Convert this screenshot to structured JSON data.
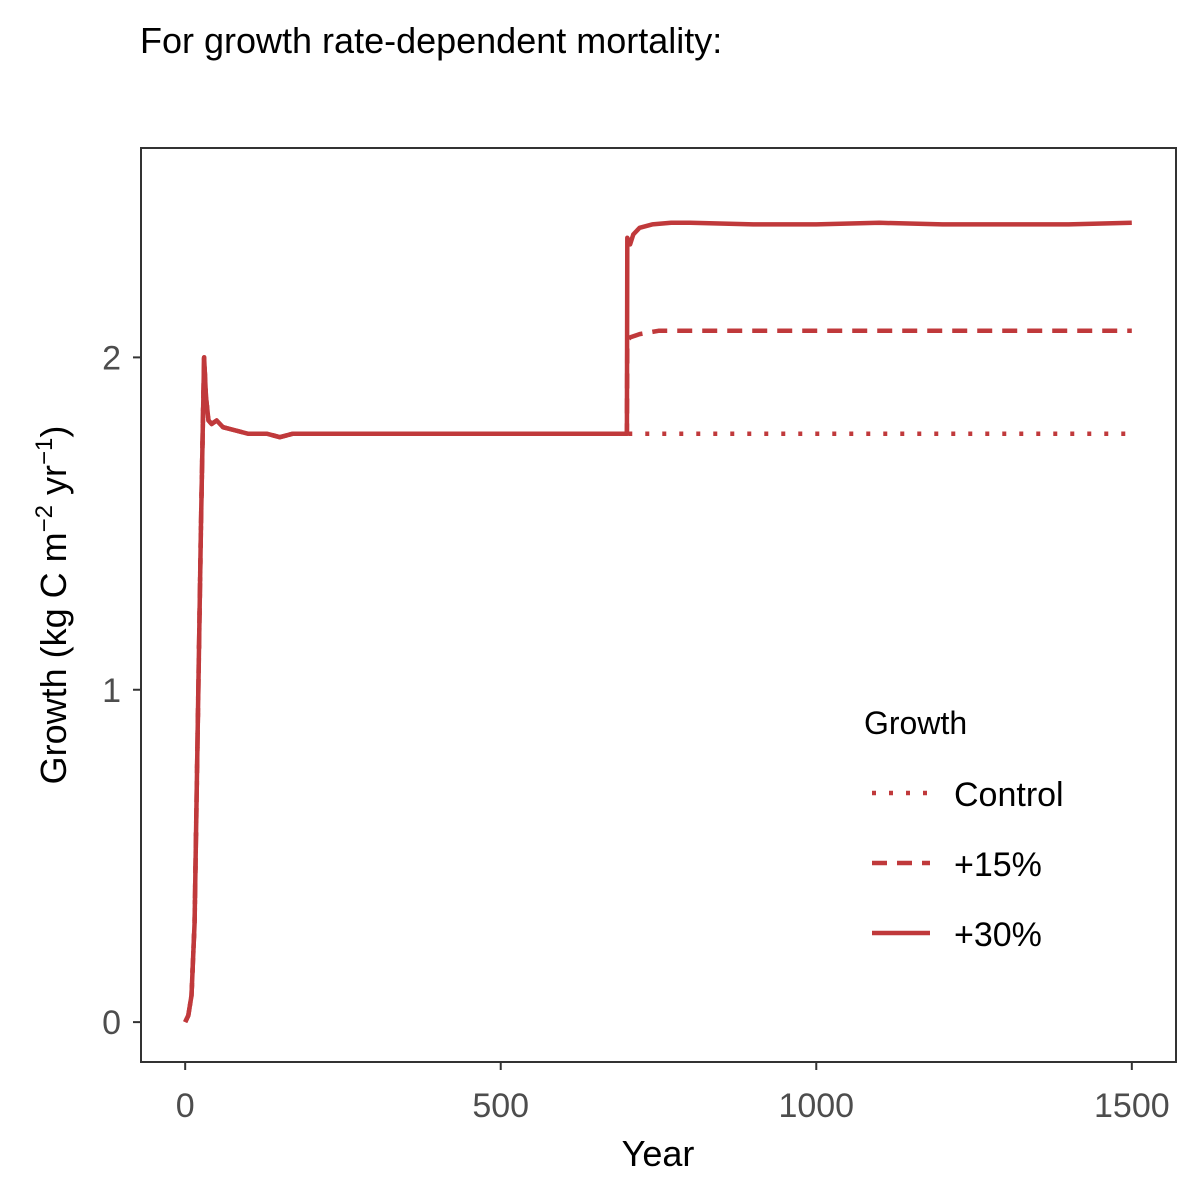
{
  "chart_data": {
    "type": "line",
    "title": "For growth rate-dependent mortality:",
    "xlabel": "Year",
    "ylabel_main": "Growth (kg C m",
    "ylabel_sup1": "−2",
    "ylabel_mid": " yr",
    "ylabel_sup2": "−1",
    "ylabel_end": ")",
    "xlim": [
      -70,
      1570
    ],
    "ylim": [
      -0.12,
      2.63
    ],
    "xticks": [
      {
        "value": 0,
        "label": "0"
      },
      {
        "value": 500,
        "label": "500"
      },
      {
        "value": 1000,
        "label": "1000"
      },
      {
        "value": 1500,
        "label": "1500"
      }
    ],
    "yticks": [
      {
        "value": 0,
        "label": "0"
      },
      {
        "value": 1,
        "label": "1"
      },
      {
        "value": 2,
        "label": "2"
      }
    ],
    "grid": false,
    "legend": {
      "title": "Growth",
      "position": "right"
    },
    "color": "#c0393b",
    "series": [
      {
        "name": "Control",
        "style": "dotted",
        "x": [
          0,
          5,
          10,
          15,
          20,
          25,
          30,
          33,
          37,
          42,
          50,
          60,
          80,
          100,
          130,
          150,
          170,
          200,
          300,
          400,
          500,
          600,
          700,
          800,
          900,
          1000,
          1100,
          1200,
          1300,
          1400,
          1500
        ],
        "y": [
          0.0,
          0.02,
          0.08,
          0.3,
          0.9,
          1.5,
          2.0,
          1.88,
          1.81,
          1.8,
          1.81,
          1.79,
          1.78,
          1.77,
          1.77,
          1.76,
          1.77,
          1.77,
          1.77,
          1.77,
          1.77,
          1.77,
          1.77,
          1.77,
          1.77,
          1.77,
          1.77,
          1.77,
          1.77,
          1.77,
          1.77
        ]
      },
      {
        "name": "+15%",
        "style": "dashed",
        "x": [
          0,
          5,
          10,
          15,
          20,
          25,
          30,
          33,
          37,
          42,
          50,
          60,
          80,
          100,
          130,
          150,
          170,
          200,
          300,
          400,
          500,
          600,
          700,
          700.5,
          705,
          720,
          750,
          800,
          900,
          1000,
          1100,
          1200,
          1300,
          1400,
          1500
        ],
        "y": [
          0.0,
          0.02,
          0.08,
          0.3,
          0.9,
          1.5,
          2.0,
          1.88,
          1.81,
          1.8,
          1.81,
          1.79,
          1.78,
          1.77,
          1.77,
          1.76,
          1.77,
          1.77,
          1.77,
          1.77,
          1.77,
          1.77,
          1.77,
          2.05,
          2.06,
          2.07,
          2.08,
          2.08,
          2.08,
          2.08,
          2.08,
          2.08,
          2.08,
          2.08,
          2.08
        ]
      },
      {
        "name": "+30%",
        "style": "solid",
        "x": [
          0,
          5,
          10,
          15,
          20,
          25,
          30,
          33,
          37,
          42,
          50,
          60,
          80,
          100,
          130,
          150,
          170,
          200,
          300,
          400,
          500,
          600,
          700,
          700.5,
          705,
          710,
          720,
          740,
          770,
          800,
          900,
          1000,
          1100,
          1200,
          1300,
          1400,
          1500
        ],
        "y": [
          0.0,
          0.02,
          0.08,
          0.3,
          0.9,
          1.5,
          2.0,
          1.88,
          1.81,
          1.8,
          1.81,
          1.79,
          1.78,
          1.77,
          1.77,
          1.76,
          1.77,
          1.77,
          1.77,
          1.77,
          1.77,
          1.77,
          1.77,
          2.36,
          2.34,
          2.37,
          2.39,
          2.4,
          2.405,
          2.405,
          2.4,
          2.4,
          2.405,
          2.4,
          2.4,
          2.4,
          2.405
        ]
      }
    ]
  }
}
